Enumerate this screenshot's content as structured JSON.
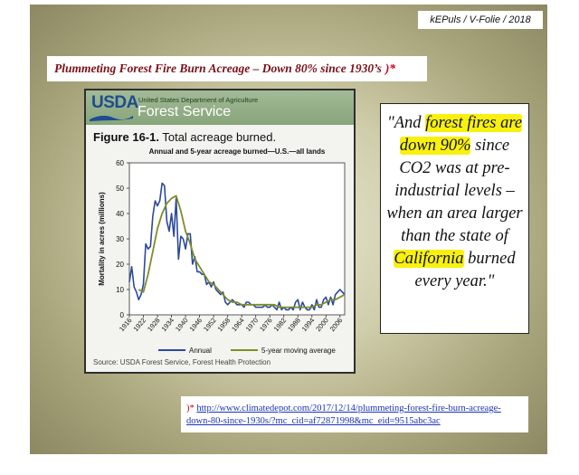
{
  "header_tag": "kEPuls / V-Folie / 2018",
  "slide_title": "Plummeting Forest Fire Burn Acreage – Down 80% since 1930’s",
  "slide_title_marker": ")*",
  "figure": {
    "logo": "USDA",
    "department": "United States Department of Agriculture",
    "agency": "Forest Service",
    "figure_label": "Figure 16-1.",
    "figure_caption": "Total acreage burned.",
    "source": "Source: USDA Forest Service, Forest Health Protection"
  },
  "quote": {
    "p1": "\"And ",
    "h1": "forest fires are",
    "h2": "down 90%",
    "p2": " since CO2 was at pre-industrial levels – when an area larger than the state of ",
    "h3": "California",
    "p3": " burned every year.\""
  },
  "reference": {
    "marker": ")*",
    "url": "http://www.climatedepot.com/2017/12/14/plummeting-forest-fire-burn-acreage-down-80-since-1930s/?mc_cid=af72871998&mc_eid=9515abc3ac"
  },
  "colors": {
    "annual": "#2a4a9c",
    "moving_avg": "#7f8c2a",
    "highlight": "#f8f10f",
    "title_red": "#7a1019"
  },
  "chart_data": {
    "type": "line",
    "title": "Annual and 5-year acreage burned—U.S.—all lands",
    "xlabel": "",
    "ylabel": "Mortality in acres (millions)",
    "xlim": [
      1916,
      2008
    ],
    "ylim": [
      0,
      60
    ],
    "yticks": [
      0,
      10,
      20,
      30,
      40,
      50,
      60
    ],
    "xticks": [
      1916,
      1922,
      1928,
      1934,
      1940,
      1946,
      1952,
      1958,
      1964,
      1970,
      1976,
      1982,
      1988,
      1994,
      2000,
      2006
    ],
    "grid": false,
    "legend_position": "bottom",
    "series": [
      {
        "name": "Annual",
        "x": [
          1916,
          1917,
          1918,
          1919,
          1920,
          1921,
          1922,
          1923,
          1924,
          1925,
          1926,
          1927,
          1928,
          1929,
          1930,
          1931,
          1932,
          1933,
          1934,
          1935,
          1936,
          1937,
          1938,
          1939,
          1940,
          1941,
          1942,
          1943,
          1944,
          1945,
          1946,
          1947,
          1948,
          1949,
          1950,
          1951,
          1952,
          1953,
          1954,
          1955,
          1956,
          1957,
          1958,
          1959,
          1960,
          1961,
          1962,
          1963,
          1964,
          1965,
          1966,
          1967,
          1968,
          1969,
          1970,
          1971,
          1972,
          1973,
          1974,
          1975,
          1976,
          1977,
          1978,
          1979,
          1980,
          1981,
          1982,
          1983,
          1984,
          1985,
          1986,
          1987,
          1988,
          1989,
          1990,
          1991,
          1992,
          1993,
          1994,
          1995,
          1996,
          1997,
          1998,
          1999,
          2000,
          2001,
          2002,
          2003,
          2004,
          2005,
          2006,
          2007,
          2008
        ],
        "y": [
          13,
          19,
          11,
          9,
          6,
          8,
          12,
          28,
          26,
          27,
          39,
          45,
          43,
          45,
          52,
          51,
          37,
          33,
          40,
          31,
          46,
          22,
          31,
          30,
          26,
          32,
          32,
          20,
          23,
          17,
          17,
          16,
          16,
          12,
          13,
          11,
          13,
          10,
          9,
          8,
          9,
          5,
          4,
          5,
          6,
          5,
          4,
          4,
          4,
          3,
          5,
          5,
          4,
          4,
          3,
          3,
          3,
          3,
          4,
          3,
          3,
          4,
          3,
          2,
          5,
          2,
          3,
          2,
          2,
          3,
          2,
          5,
          6,
          2,
          5,
          3,
          2,
          2,
          4,
          2,
          6,
          3,
          3,
          6,
          7,
          4,
          7,
          4,
          8,
          9,
          10,
          9,
          8
        ]
      },
      {
        "name": "5-year moving average",
        "x": [
          1920,
          1922,
          1924,
          1926,
          1928,
          1930,
          1932,
          1934,
          1936,
          1938,
          1940,
          1942,
          1944,
          1946,
          1948,
          1950,
          1952,
          1954,
          1956,
          1958,
          1960,
          1962,
          1964,
          1966,
          1968,
          1970,
          1972,
          1974,
          1976,
          1978,
          1980,
          1982,
          1984,
          1986,
          1988,
          1990,
          1992,
          1994,
          1996,
          1998,
          2000,
          2002,
          2004,
          2006,
          2008
        ],
        "y": [
          10,
          9,
          16,
          25,
          34,
          40,
          44,
          46,
          47,
          41,
          33,
          28,
          22,
          19,
          16,
          13,
          12,
          10,
          8,
          6,
          5,
          5,
          4,
          4,
          4,
          4,
          4,
          4,
          4,
          4,
          3,
          3,
          3,
          3,
          3,
          3,
          3,
          3,
          4,
          4,
          5,
          6,
          6,
          7,
          8
        ]
      }
    ]
  }
}
